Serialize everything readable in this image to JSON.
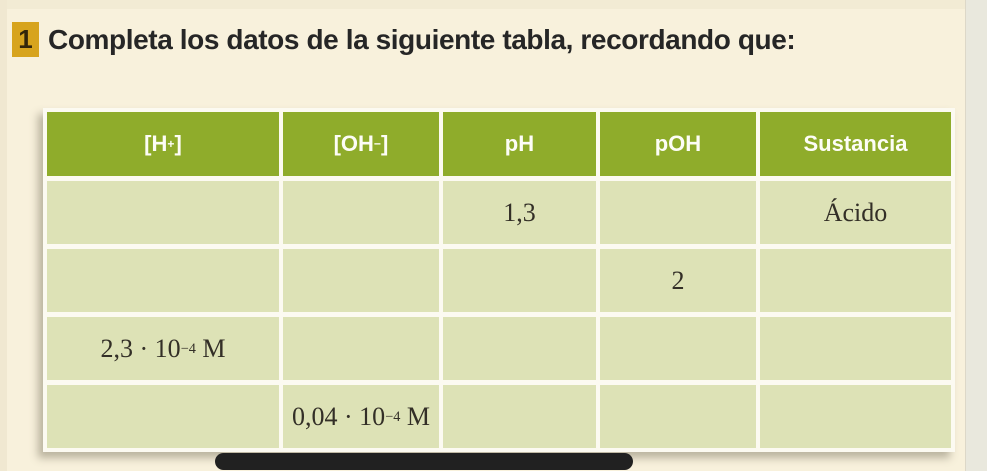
{
  "page": {
    "background_color": "#f8f1dc",
    "right_edge_color": "#e9e8dd"
  },
  "exercise": {
    "number": "1",
    "number_badge_color": "#d7a41e",
    "title": "Completa los datos de la siguiente tabla, recordando que:"
  },
  "table": {
    "header_bg_color": "#8fac2b",
    "header_text_color": "#fdfdf6",
    "cell_bg_color": "#dde2b6",
    "headers": [
      {
        "pre": "[H",
        "sup": "+",
        "post": "]"
      },
      {
        "pre": "[OH",
        "sup": "−",
        "post": "]"
      },
      {
        "pre": "pH",
        "sup": "",
        "post": ""
      },
      {
        "pre": "pOH",
        "sup": "",
        "post": ""
      },
      {
        "pre": "Sustancia",
        "sup": "",
        "post": ""
      }
    ],
    "rows": [
      [
        {
          "pre": "",
          "sup": "",
          "post": ""
        },
        {
          "pre": "",
          "sup": "",
          "post": ""
        },
        {
          "pre": "1,3",
          "sup": "",
          "post": ""
        },
        {
          "pre": "",
          "sup": "",
          "post": ""
        },
        {
          "pre": "Ácido",
          "sup": "",
          "post": ""
        }
      ],
      [
        {
          "pre": "",
          "sup": "",
          "post": ""
        },
        {
          "pre": "",
          "sup": "",
          "post": ""
        },
        {
          "pre": "",
          "sup": "",
          "post": ""
        },
        {
          "pre": "2",
          "sup": "",
          "post": ""
        },
        {
          "pre": "",
          "sup": "",
          "post": ""
        }
      ],
      [
        {
          "pre": "2,3 · 10",
          "sup": "−4",
          "post": " M"
        },
        {
          "pre": "",
          "sup": "",
          "post": ""
        },
        {
          "pre": "",
          "sup": "",
          "post": ""
        },
        {
          "pre": "",
          "sup": "",
          "post": ""
        },
        {
          "pre": "",
          "sup": "",
          "post": ""
        }
      ],
      [
        {
          "pre": "",
          "sup": "",
          "post": ""
        },
        {
          "pre": "0,04 · 10",
          "sup": "−4",
          "post": " M"
        },
        {
          "pre": "",
          "sup": "",
          "post": ""
        },
        {
          "pre": "",
          "sup": "",
          "post": ""
        },
        {
          "pre": "",
          "sup": "",
          "post": ""
        }
      ]
    ]
  },
  "bottom_bar_color": "#212121"
}
